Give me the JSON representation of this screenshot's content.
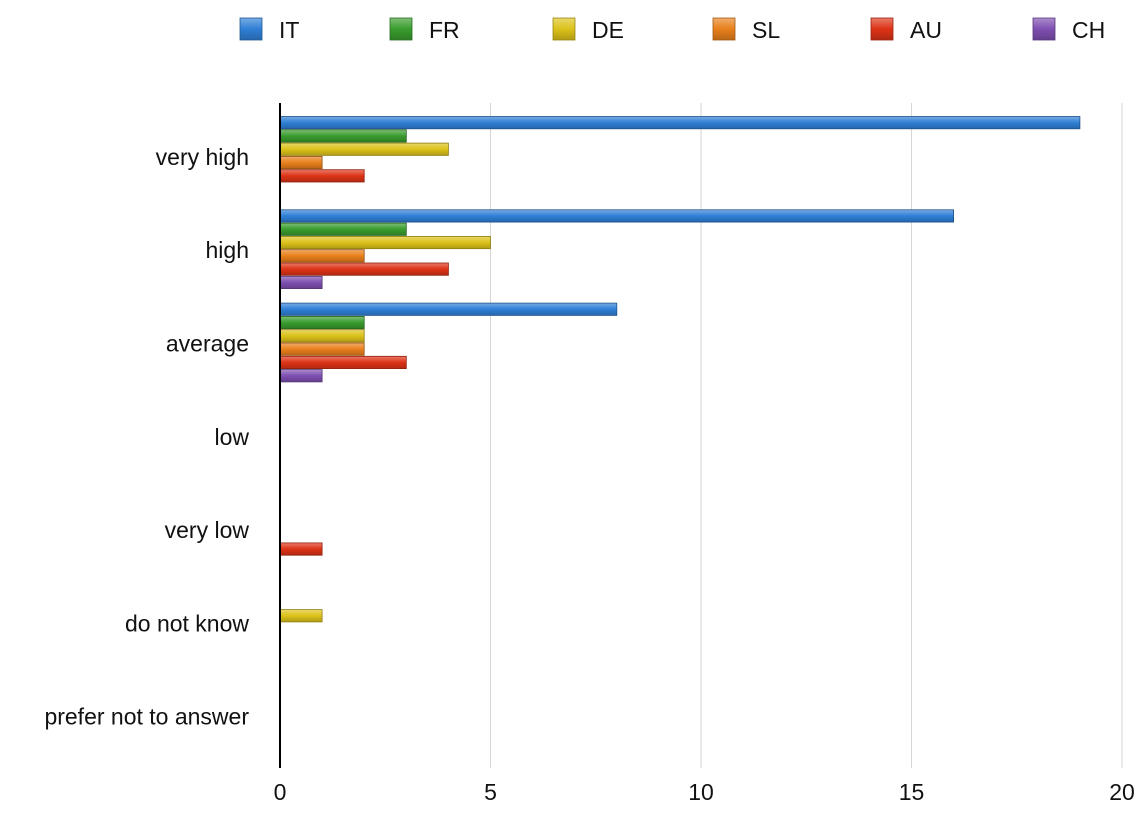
{
  "chart_data": {
    "type": "bar",
    "orientation": "horizontal",
    "categories": [
      "very high",
      "high",
      "average",
      "low",
      "very low",
      "do not know",
      "prefer not to answer"
    ],
    "series": [
      {
        "name": "IT",
        "color": "#2f7fd6",
        "values": [
          19,
          16,
          8,
          0,
          0,
          0,
          0
        ]
      },
      {
        "name": "FR",
        "color": "#3a9c2e",
        "values": [
          3,
          3,
          2,
          0,
          0,
          0,
          0
        ]
      },
      {
        "name": "DE",
        "color": "#dcc21a",
        "values": [
          4,
          5,
          2,
          0,
          0,
          1,
          0
        ]
      },
      {
        "name": "SL",
        "color": "#e8801c",
        "values": [
          1,
          2,
          2,
          0,
          0,
          0,
          0
        ]
      },
      {
        "name": "AU",
        "color": "#dd3316",
        "values": [
          2,
          4,
          3,
          0,
          1,
          0,
          0
        ]
      },
      {
        "name": "CH",
        "color": "#7e4fb0",
        "values": [
          0,
          1,
          1,
          0,
          0,
          0,
          0
        ]
      }
    ],
    "x_ticks": [
      "0",
      "5",
      "10",
      "15",
      "20"
    ],
    "xlim": [
      0,
      20
    ],
    "grid": "vertical",
    "legend_position": "top"
  }
}
